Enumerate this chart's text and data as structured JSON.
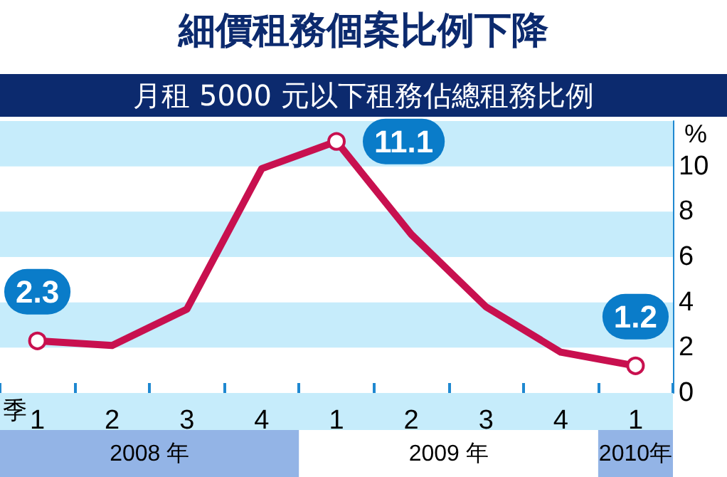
{
  "chart_data": {
    "type": "line",
    "title": "細價租務個案比例下降",
    "subtitle": "月租 5000 元以下租務佔總租務比例",
    "xlabel": "季",
    "ylabel": "%",
    "categories": [
      "1",
      "2",
      "3",
      "4",
      "1",
      "2",
      "3",
      "4",
      "1"
    ],
    "series": [
      {
        "color": "#c8104f",
        "values": [
          2.3,
          2.1,
          3.7,
          9.9,
          11.1,
          7.0,
          3.8,
          1.8,
          1.2
        ],
        "value_labels": [
          "2.3",
          null,
          null,
          null,
          "11.1",
          null,
          null,
          null,
          "1.2"
        ]
      }
    ],
    "annotations": [
      "2008 年",
      "2009 年",
      "2010年"
    ],
    "bands": [
      {
        "axis": "y",
        "from": 2,
        "to": 4,
        "color": "#c6ecfb"
      },
      {
        "axis": "y",
        "from": 6,
        "to": 8,
        "color": "#c6ecfb"
      },
      {
        "axis": "y",
        "from": 10,
        "to": 12,
        "color": "#c6ecfb"
      }
    ],
    "ylim": [
      0,
      12
    ],
    "yticks": [
      0,
      2,
      4,
      6,
      8,
      10
    ],
    "line_style": "solid"
  }
}
